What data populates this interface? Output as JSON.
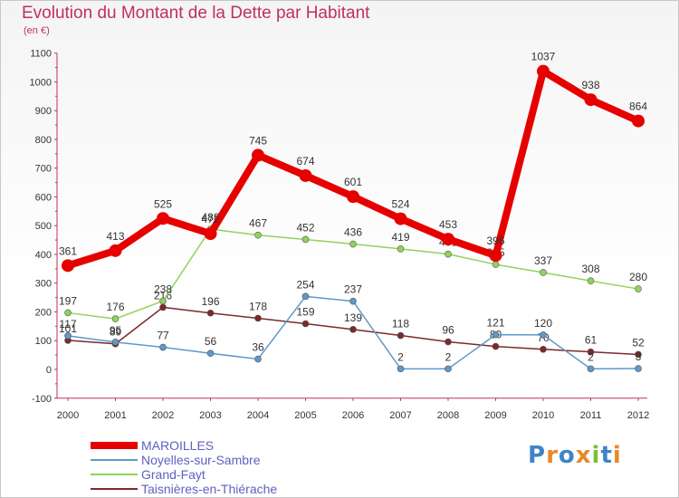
{
  "header": {
    "title": "Evolution du Montant de la Dette par Habitant",
    "unit": "(en €)"
  },
  "logo_text": "Proxiti",
  "chart_data": {
    "type": "line",
    "title": "Evolution du Montant de la Dette par Habitant",
    "subtitle": "(en €)",
    "x": [
      "2000",
      "2001",
      "2002",
      "2003",
      "2004",
      "2005",
      "2006",
      "2007",
      "2008",
      "2009",
      "2010",
      "2011",
      "2012"
    ],
    "ylim": [
      -100,
      1100
    ],
    "yticks": [
      -100,
      0,
      100,
      200,
      300,
      400,
      500,
      600,
      700,
      800,
      900,
      1000,
      1100
    ],
    "grid": false,
    "legend_position": "bottom-left",
    "series": [
      {
        "name": "MAROILLES",
        "color": "#e60000",
        "values": [
          361,
          413,
          525,
          472,
          745,
          674,
          601,
          524,
          453,
          396,
          1037,
          938,
          864
        ]
      },
      {
        "name": "Noyelles-sur-Sambre",
        "color": "#5f98c9",
        "values": [
          117,
          95,
          77,
          56,
          36,
          254,
          237,
          2,
          2,
          121,
          120,
          2,
          3
        ]
      },
      {
        "name": "Grand-Fayt",
        "color": "#92d25c",
        "values": [
          197,
          176,
          238,
          488,
          467,
          452,
          436,
          419,
          401,
          365,
          337,
          308,
          280
        ]
      },
      {
        "name": "Taisnières-en-Thiérache",
        "color": "#7a2a2a",
        "values": [
          101,
          89,
          216,
          196,
          178,
          159,
          139,
          118,
          96,
          80,
          70,
          61,
          52
        ]
      }
    ]
  }
}
